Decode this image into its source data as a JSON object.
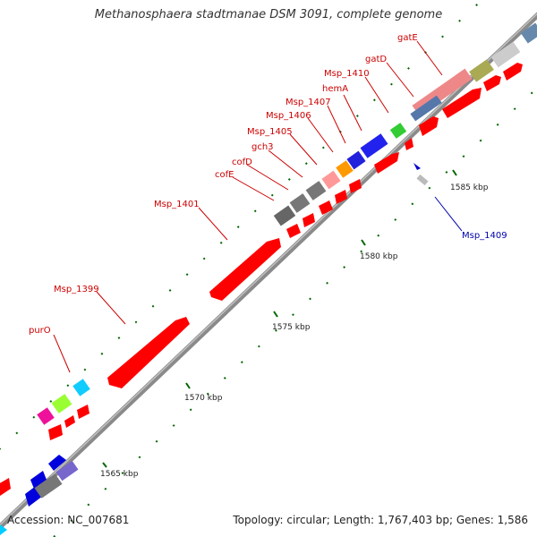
{
  "title": "Methanosphaera stadtmanae DSM 3091, complete genome",
  "footer": {
    "accession": "Accession: NC_007681",
    "summary": "Topology: circular; Length: 1,767,403 bp; Genes: 1,586"
  },
  "scale_labels": [
    "1565 kbp",
    "1570 kbp",
    "1575 kbp",
    "1580 kbp",
    "1585 kbp"
  ],
  "gene_labels": [
    "purO",
    "Msp_1399",
    "Msp_1401",
    "cofE",
    "cofD",
    "gch3",
    "Msp_1405",
    "Msp_1406",
    "Msp_1407",
    "hemA",
    "Msp_1410",
    "gatD",
    "gatE",
    "Msp_1409"
  ],
  "colors": {
    "forward_cds": "#ff0000",
    "reverse_cds": "#0000ff",
    "forward_label": "#cc0000",
    "reverse_label": "#0000aa",
    "backbone": "#888888",
    "tick": "#006600"
  }
}
